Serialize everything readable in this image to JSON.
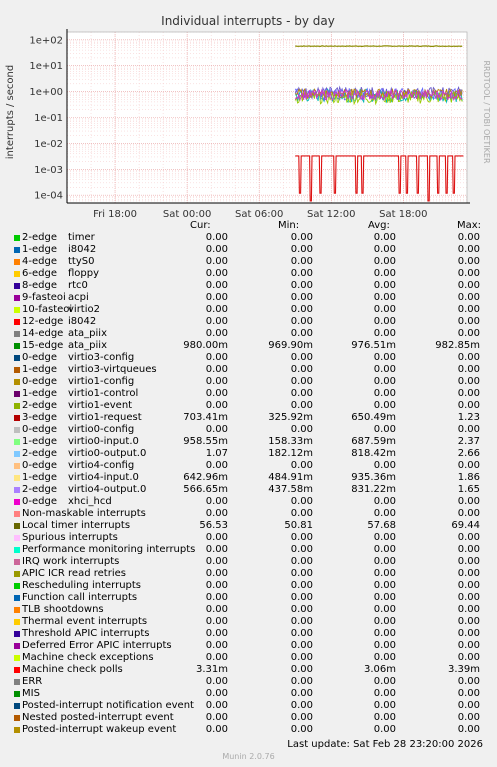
{
  "header": {
    "title": "Individual interrupts - by day",
    "side_label": "RRDTOOL / TOBI OETIKER"
  },
  "chart_data": {
    "type": "line",
    "title": "Individual interrupts - by day",
    "ylabel": "interrupts / second",
    "y_scale": "log",
    "ylim": [
      5e-05,
      200
    ],
    "y_ticks": [
      "1e+02",
      "1e+01",
      "1e+00",
      "1e-01",
      "1e-02",
      "1e-03",
      "1e-04"
    ],
    "y_tick_values": [
      100,
      10,
      1,
      0.1,
      0.01,
      0.001,
      0.0001
    ],
    "x_ticks": [
      "Fri 18:00",
      "Sat 00:00",
      "Sat 06:00",
      "Sat 12:00",
      "Sat 18:00"
    ],
    "x_tick_hours": [
      18,
      24,
      30,
      36,
      42
    ],
    "x_range_hours": [
      14,
      47.3
    ],
    "data_start_hour": 33,
    "grid": true,
    "series": [
      {
        "color": "#8b8b00",
        "mode": "flat",
        "value": 57.0,
        "jitter": 0.05
      },
      {
        "color": "#6a5acd",
        "mode": "noisy",
        "value": 0.9,
        "jitter": 0.45
      },
      {
        "color": "#00b7b7",
        "mode": "noisy",
        "value": 0.7,
        "jitter": 0.5
      },
      {
        "color": "#6666ff",
        "mode": "noisy",
        "value": 0.8,
        "jitter": 0.45
      },
      {
        "color": "#99cc00",
        "mode": "noisy",
        "value": 0.6,
        "jitter": 0.5
      },
      {
        "color": "#b8860b",
        "mode": "noisy",
        "value": 0.85,
        "jitter": 0.35
      },
      {
        "color": "#cc33cc",
        "mode": "noisy",
        "value": 0.75,
        "jitter": 0.4
      },
      {
        "color": "#dd1111",
        "mode": "polls",
        "value": 0.0033,
        "dips": [
          33.4,
          34.3,
          35.1,
          36.3,
          38.1,
          38.6,
          41.7,
          42.3,
          43.2,
          44.1,
          44.9,
          45.6,
          46.2
        ]
      }
    ]
  },
  "legend": {
    "columns": [
      "Cur:",
      "Min:",
      "Avg:",
      "Max:"
    ],
    "rows": [
      {
        "c": "#00cc00",
        "n": "2-edge",
        "d": "timer",
        "v": [
          "0.00",
          "0.00",
          "0.00",
          "0.00"
        ]
      },
      {
        "c": "#0066b3",
        "n": "1-edge",
        "d": "i8042",
        "v": [
          "0.00",
          "0.00",
          "0.00",
          "0.00"
        ]
      },
      {
        "c": "#ff8000",
        "n": "4-edge",
        "d": "ttyS0",
        "v": [
          "0.00",
          "0.00",
          "0.00",
          "0.00"
        ]
      },
      {
        "c": "#ffcc00",
        "n": "6-edge",
        "d": "floppy",
        "v": [
          "0.00",
          "0.00",
          "0.00",
          "0.00"
        ]
      },
      {
        "c": "#330099",
        "n": "8-edge",
        "d": "rtc0",
        "v": [
          "0.00",
          "0.00",
          "0.00",
          "0.00"
        ]
      },
      {
        "c": "#990099",
        "n": "9-fasteoi",
        "d": "acpi",
        "v": [
          "0.00",
          "0.00",
          "0.00",
          "0.00"
        ]
      },
      {
        "c": "#ccff00",
        "n": "10-fasteoi",
        "d": "virtio2",
        "v": [
          "0.00",
          "0.00",
          "0.00",
          "0.00"
        ]
      },
      {
        "c": "#ff0000",
        "n": "12-edge",
        "d": "i8042",
        "v": [
          "0.00",
          "0.00",
          "0.00",
          "0.00"
        ]
      },
      {
        "c": "#808080",
        "n": "14-edge",
        "d": "ata_piix",
        "v": [
          "0.00",
          "0.00",
          "0.00",
          "0.00"
        ]
      },
      {
        "c": "#008f00",
        "n": "15-edge",
        "d": "ata_piix",
        "v": [
          "980.00m",
          "969.90m",
          "976.51m",
          "982.85m"
        ]
      },
      {
        "c": "#00487d",
        "n": "0-edge",
        "d": "virtio3-config",
        "v": [
          "0.00",
          "0.00",
          "0.00",
          "0.00"
        ]
      },
      {
        "c": "#b35a00",
        "n": "1-edge",
        "d": "virtio3-virtqueues",
        "v": [
          "0.00",
          "0.00",
          "0.00",
          "0.00"
        ]
      },
      {
        "c": "#b38f00",
        "n": "0-edge",
        "d": "virtio1-config",
        "v": [
          "0.00",
          "0.00",
          "0.00",
          "0.00"
        ]
      },
      {
        "c": "#6b006b",
        "n": "1-edge",
        "d": "virtio1-control",
        "v": [
          "0.00",
          "0.00",
          "0.00",
          "0.00"
        ]
      },
      {
        "c": "#8fb300",
        "n": "2-edge",
        "d": "virtio1-event",
        "v": [
          "0.00",
          "0.00",
          "0.00",
          "0.00"
        ]
      },
      {
        "c": "#b30000",
        "n": "3-edge",
        "d": "virtio1-request",
        "v": [
          "703.41m",
          "325.92m",
          "650.49m",
          "1.23"
        ]
      },
      {
        "c": "#bebebe",
        "n": "0-edge",
        "d": "virtio0-config",
        "v": [
          "0.00",
          "0.00",
          "0.00",
          "0.00"
        ]
      },
      {
        "c": "#80ff80",
        "n": "1-edge",
        "d": "virtio0-input.0",
        "v": [
          "958.55m",
          "158.33m",
          "687.59m",
          "2.37"
        ]
      },
      {
        "c": "#80c9ff",
        "n": "2-edge",
        "d": "virtio0-output.0",
        "v": [
          "1.07",
          "182.12m",
          "818.42m",
          "2.66"
        ]
      },
      {
        "c": "#ffc080",
        "n": "0-edge",
        "d": "virtio4-config",
        "v": [
          "0.00",
          "0.00",
          "0.00",
          "0.00"
        ]
      },
      {
        "c": "#ffe680",
        "n": "1-edge",
        "d": "virtio4-input.0",
        "v": [
          "642.96m",
          "484.91m",
          "935.36m",
          "1.86"
        ]
      },
      {
        "c": "#aa80ff",
        "n": "2-edge",
        "d": "virtio4-output.0",
        "v": [
          "566.65m",
          "437.58m",
          "831.22m",
          "1.65"
        ]
      },
      {
        "c": "#ee00cc",
        "n": "0-edge",
        "d": "xhci_hcd",
        "v": [
          "0.00",
          "0.00",
          "0.00",
          "0.00"
        ]
      },
      {
        "c": "#ff8080",
        "n": "Non-maskable interrupts",
        "d": "",
        "v": [
          "0.00",
          "0.00",
          "0.00",
          "0.00"
        ]
      },
      {
        "c": "#666600",
        "n": "Local timer interrupts",
        "d": "",
        "v": [
          "56.53",
          "50.81",
          "57.68",
          "69.44"
        ]
      },
      {
        "c": "#ffbfff",
        "n": "Spurious interrupts",
        "d": "",
        "v": [
          "0.00",
          "0.00",
          "0.00",
          "0.00"
        ]
      },
      {
        "c": "#00ffcc",
        "n": "Performance monitoring interrupts",
        "d": "",
        "v": [
          "0.00",
          "0.00",
          "0.00",
          "0.00"
        ]
      },
      {
        "c": "#cc6699",
        "n": "IRQ work interrupts",
        "d": "",
        "v": [
          "0.00",
          "0.00",
          "0.00",
          "0.00"
        ]
      },
      {
        "c": "#999900",
        "n": "APIC ICR read retries",
        "d": "",
        "v": [
          "0.00",
          "0.00",
          "0.00",
          "0.00"
        ]
      },
      {
        "c": "#00cc00",
        "n": "Rescheduling interrupts",
        "d": "",
        "v": [
          "0.00",
          "0.00",
          "0.00",
          "0.00"
        ]
      },
      {
        "c": "#0066b3",
        "n": "Function call interrupts",
        "d": "",
        "v": [
          "0.00",
          "0.00",
          "0.00",
          "0.00"
        ]
      },
      {
        "c": "#ff8000",
        "n": "TLB shootdowns",
        "d": "",
        "v": [
          "0.00",
          "0.00",
          "0.00",
          "0.00"
        ]
      },
      {
        "c": "#ffcc00",
        "n": "Thermal event interrupts",
        "d": "",
        "v": [
          "0.00",
          "0.00",
          "0.00",
          "0.00"
        ]
      },
      {
        "c": "#330099",
        "n": "Threshold APIC interrupts",
        "d": "",
        "v": [
          "0.00",
          "0.00",
          "0.00",
          "0.00"
        ]
      },
      {
        "c": "#990099",
        "n": "Deferred Error APIC interrupts",
        "d": "",
        "v": [
          "0.00",
          "0.00",
          "0.00",
          "0.00"
        ]
      },
      {
        "c": "#ccff00",
        "n": "Machine check exceptions",
        "d": "",
        "v": [
          "0.00",
          "0.00",
          "0.00",
          "0.00"
        ]
      },
      {
        "c": "#ff0000",
        "n": "Machine check polls",
        "d": "",
        "v": [
          "3.31m",
          "0.00",
          "3.06m",
          "3.39m"
        ]
      },
      {
        "c": "#808080",
        "n": "ERR",
        "d": "",
        "v": [
          "0.00",
          "0.00",
          "0.00",
          "0.00"
        ]
      },
      {
        "c": "#008f00",
        "n": "MIS",
        "d": "",
        "v": [
          "0.00",
          "0.00",
          "0.00",
          "0.00"
        ]
      },
      {
        "c": "#00487d",
        "n": "Posted-interrupt notification event",
        "d": "",
        "v": [
          "0.00",
          "0.00",
          "0.00",
          "0.00"
        ]
      },
      {
        "c": "#b35a00",
        "n": "Nested posted-interrupt event",
        "d": "",
        "v": [
          "0.00",
          "0.00",
          "0.00",
          "0.00"
        ]
      },
      {
        "c": "#b38f00",
        "n": "Posted-interrupt wakeup event",
        "d": "",
        "v": [
          "0.00",
          "0.00",
          "0.00",
          "0.00"
        ]
      }
    ]
  },
  "footer": {
    "last_update": "Last update:  Sat Feb 28 23:20:00 2026",
    "munin": "Munin 2.0.76"
  }
}
